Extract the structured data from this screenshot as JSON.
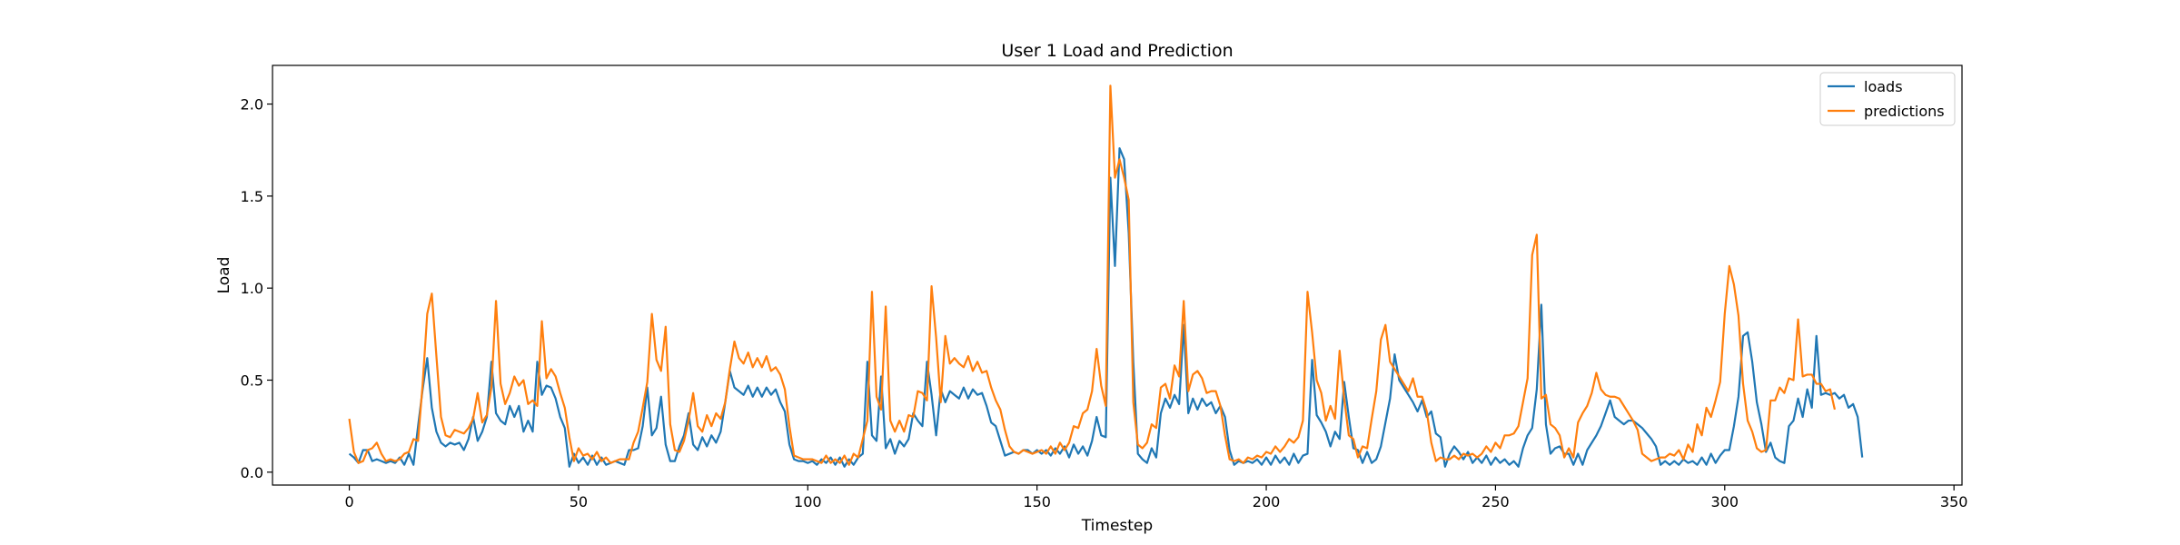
{
  "chart_data": {
    "type": "line",
    "title": "User 1 Load and Prediction",
    "xlabel": "Timestep",
    "ylabel": "Load",
    "xlim": [
      -16.75,
      351.75
    ],
    "ylim": [
      -0.07,
      2.21
    ],
    "xticks": [
      0,
      50,
      100,
      150,
      200,
      250,
      300,
      350
    ],
    "yticks": [
      0.0,
      0.5,
      1.0,
      1.5,
      2.0
    ],
    "xtick_labels": [
      "0",
      "50",
      "100",
      "150",
      "200",
      "250",
      "300",
      "350"
    ],
    "ytick_labels": [
      "0.0",
      "0.5",
      "1.0",
      "1.5",
      "2.0"
    ],
    "grid": false,
    "legend": "top-right",
    "colors": {
      "loads": "#1f77b4",
      "predictions": "#ff7f0e"
    },
    "series": [
      {
        "name": "loads",
        "color": "#1f77b4",
        "y": [
          0.1,
          0.08,
          0.05,
          0.12,
          0.12,
          0.06,
          0.07,
          0.06,
          0.05,
          0.06,
          0.05,
          0.08,
          0.04,
          0.1,
          0.04,
          0.25,
          0.45,
          0.62,
          0.35,
          0.22,
          0.16,
          0.14,
          0.16,
          0.15,
          0.16,
          0.12,
          0.18,
          0.3,
          0.17,
          0.22,
          0.3,
          0.6,
          0.32,
          0.28,
          0.26,
          0.36,
          0.3,
          0.36,
          0.22,
          0.28,
          0.22,
          0.6,
          0.42,
          0.47,
          0.46,
          0.4,
          0.3,
          0.24,
          0.03,
          0.1,
          0.05,
          0.08,
          0.04,
          0.09,
          0.04,
          0.08,
          0.04,
          0.05,
          0.06,
          0.05,
          0.04,
          0.12,
          0.12,
          0.13,
          0.25,
          0.46,
          0.2,
          0.24,
          0.41,
          0.15,
          0.06,
          0.06,
          0.14,
          0.2,
          0.32,
          0.15,
          0.12,
          0.19,
          0.14,
          0.2,
          0.16,
          0.22,
          0.38,
          0.55,
          0.46,
          0.44,
          0.42,
          0.47,
          0.41,
          0.46,
          0.41,
          0.46,
          0.42,
          0.45,
          0.38,
          0.33,
          0.15,
          0.07,
          0.06,
          0.06,
          0.05,
          0.06,
          0.04,
          0.07,
          0.05,
          0.08,
          0.04,
          0.08,
          0.03,
          0.07,
          0.04,
          0.08,
          0.1,
          0.6,
          0.2,
          0.17,
          0.52,
          0.13,
          0.18,
          0.1,
          0.17,
          0.14,
          0.18,
          0.32,
          0.28,
          0.25,
          0.6,
          0.42,
          0.2,
          0.45,
          0.38,
          0.44,
          0.42,
          0.4,
          0.46,
          0.4,
          0.45,
          0.42,
          0.43,
          0.36,
          0.27,
          0.25,
          0.17,
          0.09,
          0.1,
          0.11,
          0.1,
          0.12,
          0.12,
          0.1,
          0.12,
          0.1,
          0.12,
          0.09,
          0.13,
          0.1,
          0.14,
          0.08,
          0.15,
          0.1,
          0.14,
          0.09,
          0.17,
          0.3,
          0.2,
          0.19,
          1.6,
          1.12,
          1.76,
          1.7,
          1.3,
          0.6,
          0.1,
          0.07,
          0.05,
          0.13,
          0.08,
          0.32,
          0.4,
          0.35,
          0.42,
          0.37,
          0.8,
          0.32,
          0.4,
          0.34,
          0.4,
          0.36,
          0.38,
          0.32,
          0.36,
          0.3,
          0.12,
          0.04,
          0.06,
          0.05,
          0.06,
          0.05,
          0.07,
          0.04,
          0.08,
          0.04,
          0.09,
          0.05,
          0.08,
          0.04,
          0.1,
          0.05,
          0.09,
          0.1,
          0.61,
          0.31,
          0.27,
          0.22,
          0.14,
          0.22,
          0.18,
          0.49,
          0.3,
          0.13,
          0.12,
          0.05,
          0.11,
          0.05,
          0.07,
          0.14,
          0.27,
          0.4,
          0.64,
          0.5,
          0.46,
          0.42,
          0.38,
          0.33,
          0.39,
          0.3,
          0.33,
          0.21,
          0.19,
          0.03,
          0.1,
          0.14,
          0.11,
          0.07,
          0.11,
          0.05,
          0.08,
          0.05,
          0.09,
          0.04,
          0.08,
          0.05,
          0.07,
          0.04,
          0.06,
          0.03,
          0.13,
          0.2,
          0.24,
          0.45,
          0.91,
          0.26,
          0.1,
          0.13,
          0.14,
          0.1,
          0.1,
          0.04,
          0.1,
          0.04,
          0.12,
          0.16,
          0.2,
          0.25,
          0.32,
          0.39,
          0.3,
          0.28,
          0.26,
          0.28,
          0.28,
          0.26,
          0.24,
          0.21,
          0.18,
          0.14,
          0.04,
          0.06,
          0.04,
          0.06,
          0.04,
          0.07,
          0.05,
          0.06,
          0.04,
          0.08,
          0.04,
          0.1,
          0.05,
          0.09,
          0.12,
          0.12,
          0.25,
          0.41,
          0.74,
          0.76,
          0.6,
          0.38,
          0.26,
          0.11,
          0.16,
          0.08,
          0.06,
          0.05,
          0.25,
          0.28,
          0.4,
          0.3,
          0.45,
          0.35,
          0.74,
          0.42,
          0.43,
          0.42,
          0.43,
          0.4,
          0.42,
          0.35,
          0.37,
          0.3,
          0.08
        ]
      },
      {
        "name": "predictions",
        "color": "#ff7f0e",
        "y": [
          0.29,
          0.11,
          0.05,
          0.06,
          0.12,
          0.13,
          0.16,
          0.1,
          0.06,
          0.07,
          0.06,
          0.07,
          0.1,
          0.11,
          0.18,
          0.17,
          0.48,
          0.86,
          0.97,
          0.63,
          0.3,
          0.2,
          0.19,
          0.23,
          0.22,
          0.21,
          0.24,
          0.29,
          0.43,
          0.27,
          0.31,
          0.46,
          0.93,
          0.48,
          0.37,
          0.43,
          0.52,
          0.47,
          0.5,
          0.37,
          0.39,
          0.36,
          0.82,
          0.51,
          0.56,
          0.52,
          0.43,
          0.35,
          0.19,
          0.06,
          0.13,
          0.09,
          0.1,
          0.07,
          0.11,
          0.06,
          0.08,
          0.05,
          0.06,
          0.07,
          0.07,
          0.07,
          0.16,
          0.22,
          0.35,
          0.49,
          0.86,
          0.61,
          0.55,
          0.79,
          0.26,
          0.12,
          0.11,
          0.17,
          0.28,
          0.43,
          0.25,
          0.22,
          0.31,
          0.25,
          0.32,
          0.29,
          0.38,
          0.56,
          0.71,
          0.62,
          0.59,
          0.65,
          0.57,
          0.62,
          0.57,
          0.63,
          0.55,
          0.57,
          0.53,
          0.45,
          0.25,
          0.09,
          0.08,
          0.07,
          0.07,
          0.07,
          0.06,
          0.05,
          0.09,
          0.05,
          0.07,
          0.05,
          0.09,
          0.04,
          0.1,
          0.08,
          0.18,
          0.28,
          0.98,
          0.41,
          0.34,
          0.9,
          0.28,
          0.22,
          0.28,
          0.22,
          0.31,
          0.3,
          0.44,
          0.43,
          0.39,
          1.01,
          0.73,
          0.38,
          0.74,
          0.59,
          0.62,
          0.59,
          0.57,
          0.63,
          0.55,
          0.6,
          0.54,
          0.55,
          0.46,
          0.39,
          0.34,
          0.23,
          0.14,
          0.11,
          0.1,
          0.12,
          0.11,
          0.1,
          0.11,
          0.12,
          0.1,
          0.14,
          0.1,
          0.16,
          0.12,
          0.16,
          0.25,
          0.24,
          0.32,
          0.34,
          0.44,
          0.67,
          0.47,
          0.36,
          2.1,
          1.6,
          1.7,
          1.6,
          1.48,
          0.38,
          0.15,
          0.13,
          0.16,
          0.26,
          0.24,
          0.46,
          0.48,
          0.4,
          0.58,
          0.52,
          0.93,
          0.44,
          0.53,
          0.55,
          0.51,
          0.43,
          0.44,
          0.44,
          0.36,
          0.2,
          0.07,
          0.06,
          0.07,
          0.05,
          0.08,
          0.07,
          0.09,
          0.08,
          0.11,
          0.1,
          0.14,
          0.11,
          0.14,
          0.18,
          0.16,
          0.19,
          0.28,
          0.98,
          0.76,
          0.5,
          0.43,
          0.28,
          0.36,
          0.29,
          0.66,
          0.4,
          0.2,
          0.18,
          0.08,
          0.14,
          0.13,
          0.29,
          0.44,
          0.72,
          0.8,
          0.6,
          0.56,
          0.52,
          0.48,
          0.44,
          0.51,
          0.41,
          0.41,
          0.33,
          0.16,
          0.06,
          0.08,
          0.07,
          0.07,
          0.09,
          0.07,
          0.1,
          0.09,
          0.1,
          0.08,
          0.1,
          0.14,
          0.11,
          0.16,
          0.13,
          0.2,
          0.2,
          0.21,
          0.25,
          0.38,
          0.51,
          1.18,
          1.29,
          0.4,
          0.42,
          0.26,
          0.24,
          0.2,
          0.08,
          0.13,
          0.08,
          0.27,
          0.32,
          0.36,
          0.43,
          0.54,
          0.45,
          0.42,
          0.41,
          0.41,
          0.4,
          0.36,
          0.32,
          0.28,
          0.23,
          0.1,
          0.08,
          0.06,
          0.07,
          0.08,
          0.08,
          0.1,
          0.09,
          0.12,
          0.07,
          0.15,
          0.11,
          0.26,
          0.2,
          0.35,
          0.3,
          0.39,
          0.49,
          0.86,
          1.12,
          1.02,
          0.85,
          0.48,
          0.28,
          0.22,
          0.13,
          0.11,
          0.12,
          0.39,
          0.39,
          0.46,
          0.43,
          0.51,
          0.5,
          0.83,
          0.52,
          0.53,
          0.53,
          0.48,
          0.48,
          0.44,
          0.45,
          0.34
        ]
      }
    ]
  }
}
